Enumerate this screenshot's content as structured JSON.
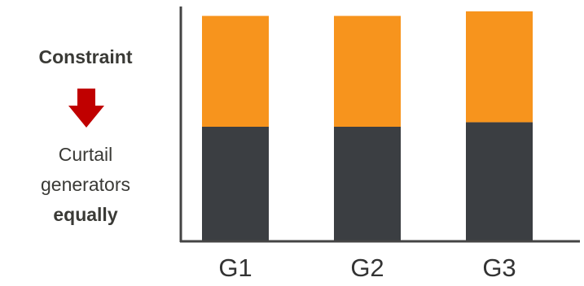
{
  "left_panel": {
    "heading": "Constraint",
    "arrow_icon": "down-arrow-icon",
    "arrow_color": "#c00000",
    "body_lines": [
      "Curtail",
      "generators"
    ],
    "body_emphasis": "equally",
    "text_color": "#3a3a36"
  },
  "chart_data": {
    "type": "bar",
    "stacked": true,
    "categories": [
      "G1",
      "G2",
      "G3"
    ],
    "series": [
      {
        "color": "#3b3e42",
        "values": [
          51,
          51,
          53
        ]
      },
      {
        "color": "#f7941d",
        "values": [
          49,
          49,
          49
        ]
      }
    ],
    "ylim": [
      0,
      102
    ],
    "grid": false,
    "legend": "none",
    "title": "",
    "xlabel": "",
    "ylabel": ""
  }
}
